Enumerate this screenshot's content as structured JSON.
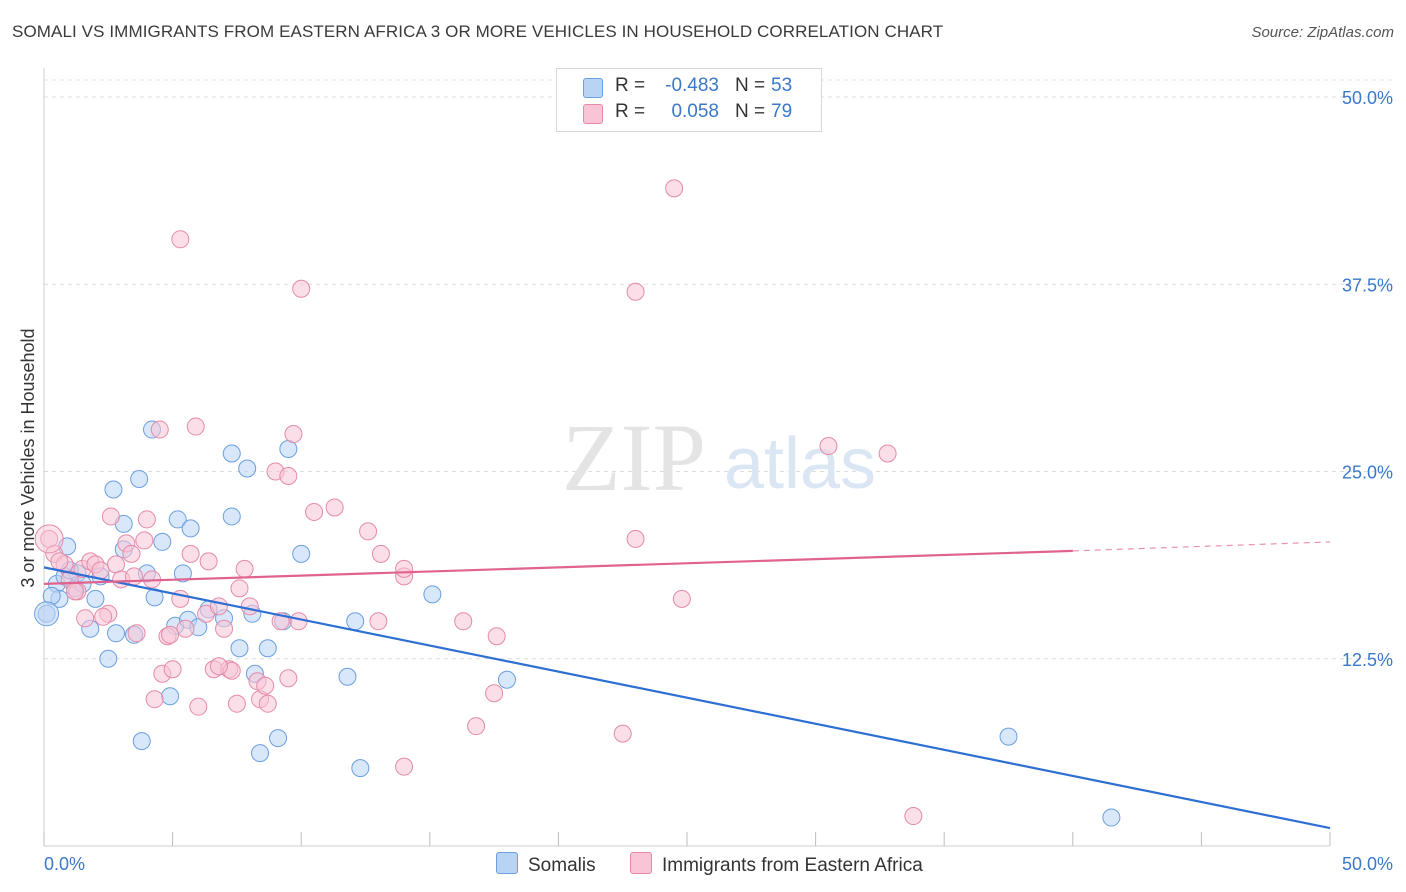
{
  "header": {
    "title": "SOMALI VS IMMIGRANTS FROM EASTERN AFRICA 3 OR MORE VEHICLES IN HOUSEHOLD CORRELATION CHART",
    "source": "Source: ZipAtlas.com"
  },
  "watermark": {
    "zip": "ZIP",
    "atlas": "atlas"
  },
  "legend": {
    "rows": [
      {
        "r_label": "R =",
        "r_value": "-0.483",
        "n_label": "N =",
        "n_value": "53",
        "color": "#b9d3f5"
      },
      {
        "r_label": "R =",
        "r_value": "0.058",
        "n_label": "N =",
        "n_value": "79",
        "color": "#f8c4d6"
      }
    ]
  },
  "chart_data": {
    "type": "scatter",
    "title": "SOMALI VS IMMIGRANTS FROM EASTERN AFRICA 3 OR MORE VEHICLES IN HOUSEHOLD CORRELATION CHART",
    "xlabel": "",
    "ylabel": "3 or more Vehicles in Household",
    "xlim": [
      0,
      50
    ],
    "ylim": [
      0,
      52
    ],
    "x_tick_labels": [
      "0.0%",
      "50.0%"
    ],
    "y_ticks": [
      12.5,
      25.0,
      37.5,
      50.0
    ],
    "y_tick_labels": [
      "12.5%",
      "25.0%",
      "37.5%",
      "50.0%"
    ],
    "grid": true,
    "series": [
      {
        "name": "Somalis",
        "color": "#6a9fe0",
        "fill": "#b9d3f5",
        "trend_color": "#2e6fd4",
        "trend": {
          "x": [
            0,
            50
          ],
          "y": [
            18.6,
            1.2
          ]
        },
        "points": [
          [
            0.1,
            15.5
          ],
          [
            0.5,
            17.5
          ],
          [
            0.6,
            16.5
          ],
          [
            0.8,
            18.0
          ],
          [
            0.9,
            20.0
          ],
          [
            1.2,
            17.2
          ],
          [
            1.3,
            18.2
          ],
          [
            1.5,
            17.5
          ],
          [
            1.8,
            14.5
          ],
          [
            2.0,
            16.5
          ],
          [
            2.5,
            12.5
          ],
          [
            2.8,
            14.2
          ],
          [
            2.7,
            23.8
          ],
          [
            3.1,
            21.5
          ],
          [
            3.1,
            19.8
          ],
          [
            3.5,
            14.1
          ],
          [
            3.7,
            24.5
          ],
          [
            3.8,
            7.0
          ],
          [
            4.0,
            18.2
          ],
          [
            4.2,
            27.8
          ],
          [
            4.3,
            16.6
          ],
          [
            4.6,
            20.3
          ],
          [
            4.9,
            10.0
          ],
          [
            5.1,
            14.7
          ],
          [
            5.2,
            21.8
          ],
          [
            5.4,
            18.2
          ],
          [
            5.6,
            15.1
          ],
          [
            5.7,
            21.2
          ],
          [
            6.0,
            14.6
          ],
          [
            6.4,
            15.8
          ],
          [
            7.0,
            15.2
          ],
          [
            7.3,
            26.2
          ],
          [
            7.3,
            22.0
          ],
          [
            7.6,
            13.2
          ],
          [
            7.9,
            25.2
          ],
          [
            8.1,
            15.5
          ],
          [
            8.2,
            11.5
          ],
          [
            8.4,
            6.2
          ],
          [
            8.7,
            13.2
          ],
          [
            9.1,
            7.2
          ],
          [
            9.3,
            15.0
          ],
          [
            9.5,
            26.5
          ],
          [
            10.0,
            19.5
          ],
          [
            11.8,
            11.3
          ],
          [
            12.1,
            15.0
          ],
          [
            12.3,
            5.2
          ],
          [
            15.1,
            16.8
          ],
          [
            18.0,
            11.1
          ],
          [
            37.5,
            7.3
          ],
          [
            41.5,
            1.9
          ],
          [
            0.3,
            16.7
          ],
          [
            1.0,
            18.4
          ],
          [
            2.2,
            18.0
          ]
        ]
      },
      {
        "name": "Immigrants from Eastern Africa",
        "color": "#e58aa8",
        "fill": "#f8c4d6",
        "trend_color": "#e0638f",
        "trend": {
          "x": [
            0,
            40
          ],
          "y": [
            17.5,
            19.7
          ]
        },
        "trend_dashed": {
          "x": [
            40,
            50
          ],
          "y": [
            19.7,
            20.3
          ]
        },
        "points": [
          [
            0.2,
            20.5
          ],
          [
            0.4,
            19.5
          ],
          [
            0.8,
            18.8
          ],
          [
            1.0,
            17.8
          ],
          [
            1.3,
            17.0
          ],
          [
            1.5,
            18.5
          ],
          [
            1.6,
            15.2
          ],
          [
            1.8,
            19.0
          ],
          [
            2.0,
            18.8
          ],
          [
            2.2,
            18.4
          ],
          [
            2.5,
            15.5
          ],
          [
            2.6,
            22.0
          ],
          [
            2.8,
            18.8
          ],
          [
            3.0,
            17.8
          ],
          [
            3.2,
            20.2
          ],
          [
            3.4,
            19.5
          ],
          [
            3.6,
            14.2
          ],
          [
            3.9,
            20.4
          ],
          [
            4.0,
            21.8
          ],
          [
            4.2,
            17.8
          ],
          [
            4.3,
            9.8
          ],
          [
            4.5,
            27.8
          ],
          [
            4.6,
            11.5
          ],
          [
            4.8,
            14.0
          ],
          [
            5.0,
            11.8
          ],
          [
            5.3,
            16.5
          ],
          [
            5.3,
            40.5
          ],
          [
            5.5,
            14.5
          ],
          [
            5.7,
            19.5
          ],
          [
            5.9,
            28.0
          ],
          [
            6.0,
            9.3
          ],
          [
            6.3,
            15.5
          ],
          [
            6.4,
            19.0
          ],
          [
            6.6,
            11.8
          ],
          [
            6.8,
            16.0
          ],
          [
            7.0,
            14.5
          ],
          [
            7.2,
            11.8
          ],
          [
            7.3,
            11.7
          ],
          [
            7.5,
            9.5
          ],
          [
            7.6,
            17.2
          ],
          [
            7.8,
            18.5
          ],
          [
            8.0,
            16.0
          ],
          [
            8.3,
            11.0
          ],
          [
            8.4,
            9.8
          ],
          [
            8.6,
            10.7
          ],
          [
            8.7,
            9.5
          ],
          [
            9.0,
            25.0
          ],
          [
            9.2,
            15.0
          ],
          [
            9.5,
            24.7
          ],
          [
            9.5,
            11.2
          ],
          [
            9.7,
            27.5
          ],
          [
            9.9,
            15.0
          ],
          [
            10.0,
            37.2
          ],
          [
            10.5,
            22.3
          ],
          [
            11.3,
            22.6
          ],
          [
            12.6,
            21.0
          ],
          [
            13.0,
            15.0
          ],
          [
            13.1,
            19.5
          ],
          [
            14.0,
            18.0
          ],
          [
            14.0,
            18.5
          ],
          [
            14.0,
            5.3
          ],
          [
            16.3,
            15.0
          ],
          [
            16.8,
            8.0
          ],
          [
            17.5,
            10.2
          ],
          [
            17.6,
            14.0
          ],
          [
            22.5,
            7.5
          ],
          [
            23.0,
            20.5
          ],
          [
            23.0,
            37.0
          ],
          [
            24.5,
            43.9
          ],
          [
            24.8,
            16.5
          ],
          [
            30.5,
            26.7
          ],
          [
            32.8,
            26.2
          ],
          [
            33.8,
            2.0
          ],
          [
            0.6,
            19.0
          ],
          [
            1.2,
            17.0
          ],
          [
            2.3,
            15.3
          ],
          [
            3.5,
            18.0
          ],
          [
            6.8,
            12.0
          ],
          [
            4.9,
            14.1
          ]
        ]
      }
    ]
  }
}
